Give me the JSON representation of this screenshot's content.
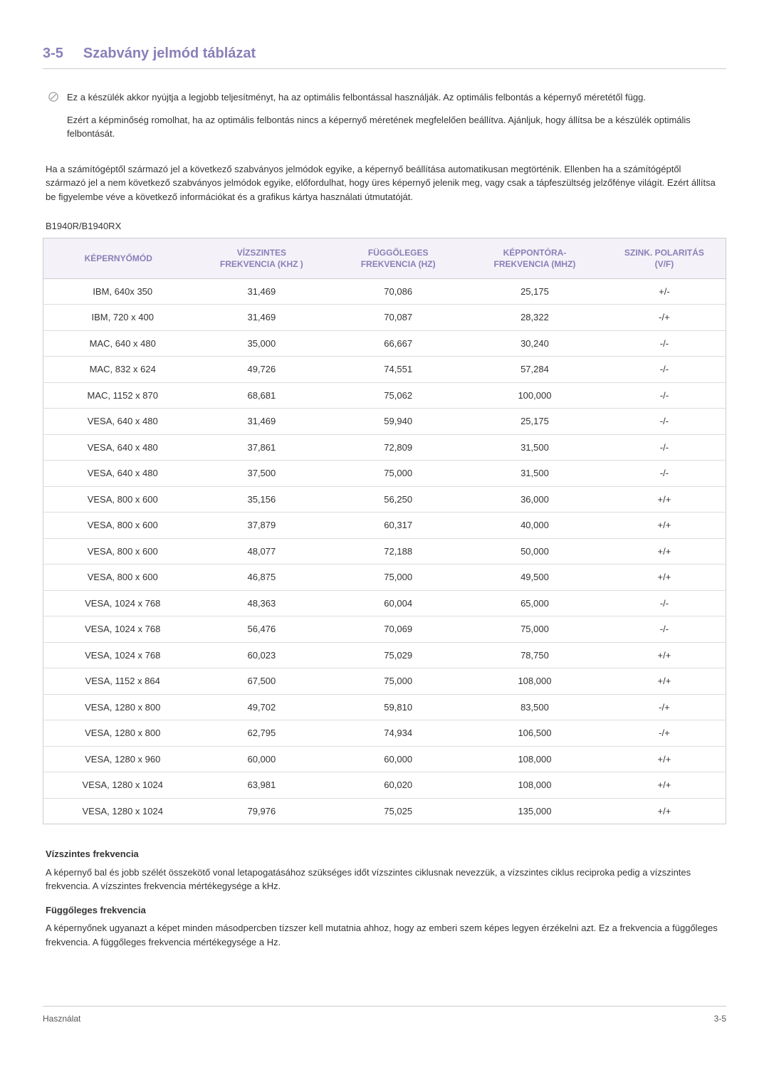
{
  "heading": {
    "number": "3-5",
    "title": "Szabvány jelmód táblázat"
  },
  "note": {
    "p1": "Ez a készülék akkor nyújtja a legjobb teljesítményt, ha az optimális felbontással használják. Az optimális felbontás a képernyő méretétől függ.",
    "p2": "Ezért a képminőség romolhat, ha az optimális felbontás nincs a képernyő méretének megfelelően beállítva. Ajánljuk, hogy állítsa be a készülék optimális felbontását."
  },
  "body_para": "Ha a számítógéptől származó jel a következő szabványos jelmódok egyike, a képernyő beállítása automatikusan megtörténik. Ellenben ha a számítógéptől származó jel a nem következő szabványos jelmódok egyike, előfordulhat, hogy üres képernyő jelenik meg, vagy csak a tápfeszültség jelzőfénye világít. Ezért állítsa be figyelembe véve a következő információkat és a grafikus kártya használati útmutatóját.",
  "model_label": "B1940R/B1940RX",
  "table": {
    "columns": [
      "KÉPERNYŐMÓD",
      "VÍZSZINTES FREKVENCIA (KHZ )",
      "FÜGGŐLEGES FREKVENCIA (HZ)",
      "KÉPPONTÓRA-FREKVENCIA (MHZ)",
      "SZINK. POLARITÁS (V/F)"
    ],
    "rows": [
      [
        "IBM, 640x 350",
        "31,469",
        "70,086",
        "25,175",
        "+/-"
      ],
      [
        "IBM, 720 x 400",
        "31,469",
        "70,087",
        "28,322",
        "-/+"
      ],
      [
        "MAC, 640 x 480",
        "35,000",
        "66,667",
        "30,240",
        "-/-"
      ],
      [
        "MAC, 832 x 624",
        "49,726",
        "74,551",
        "57,284",
        "-/-"
      ],
      [
        "MAC, 1152 x 870",
        "68,681",
        "75,062",
        "100,000",
        "-/-"
      ],
      [
        "VESA, 640 x 480",
        "31,469",
        "59,940",
        "25,175",
        "-/-"
      ],
      [
        "VESA, 640 x 480",
        "37,861",
        "72,809",
        "31,500",
        "-/-"
      ],
      [
        "VESA, 640 x 480",
        "37,500",
        "75,000",
        "31,500",
        "-/-"
      ],
      [
        "VESA, 800 x 600",
        "35,156",
        "56,250",
        "36,000",
        "+/+"
      ],
      [
        "VESA, 800 x 600",
        "37,879",
        "60,317",
        "40,000",
        "+/+"
      ],
      [
        "VESA, 800 x 600",
        "48,077",
        "72,188",
        "50,000",
        "+/+"
      ],
      [
        "VESA, 800 x 600",
        "46,875",
        "75,000",
        "49,500",
        "+/+"
      ],
      [
        "VESA, 1024 x 768",
        "48,363",
        "60,004",
        "65,000",
        "-/-"
      ],
      [
        "VESA, 1024 x 768",
        "56,476",
        "70,069",
        "75,000",
        "-/-"
      ],
      [
        "VESA, 1024 x 768",
        "60,023",
        "75,029",
        "78,750",
        "+/+"
      ],
      [
        "VESA, 1152 x 864",
        "67,500",
        "75,000",
        "108,000",
        "+/+"
      ],
      [
        "VESA, 1280 x 800",
        "49,702",
        "59,810",
        "83,500",
        "-/+"
      ],
      [
        "VESA, 1280 x 800",
        "62,795",
        "74,934",
        "106,500",
        "-/+"
      ],
      [
        "VESA, 1280 x 960",
        "60,000",
        "60,000",
        "108,000",
        "+/+"
      ],
      [
        "VESA, 1280 x 1024",
        "63,981",
        "60,020",
        "108,000",
        "+/+"
      ],
      [
        "VESA, 1280 x 1024",
        "79,976",
        "75,025",
        "135,000",
        "+/+"
      ]
    ],
    "col_widths": [
      "22%",
      "20%",
      "20%",
      "20%",
      "18%"
    ],
    "header_bg": "#f4f2f8",
    "header_color": "#8a7fb8",
    "border_color": "#cccccc",
    "row_border_color": "#dddddd"
  },
  "defs": {
    "h1": "Vízszintes frekvencia",
    "t1": "A képernyő bal és jobb szélét összekötő vonal letapogatásához szükséges időt vízszintes ciklusnak nevezzük, a vízszintes ciklus reciproka pedig a vízszintes frekvencia. A vízszintes frekvencia mértékegysége a kHz.",
    "h2": "Függőleges frekvencia",
    "t2": "A képernyőnek ugyanazt a képet minden másodpercben tízszer kell mutatnia ahhoz, hogy az emberi szem képes legyen érzékelni azt. Ez a frekvencia a függőleges frekvencia. A függőleges frekvencia mértékegysége a Hz."
  },
  "footer": {
    "left": "Használat",
    "right": "3-5"
  }
}
